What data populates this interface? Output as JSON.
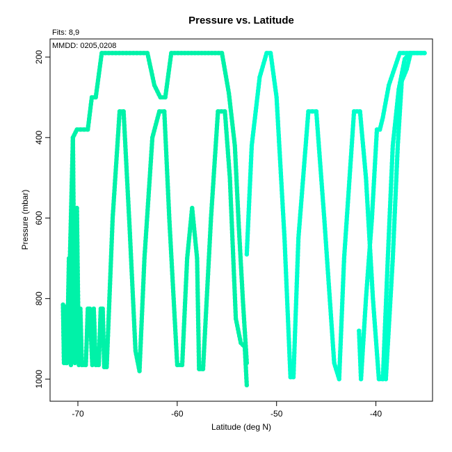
{
  "chart_data": {
    "type": "line",
    "title": "Pressure vs. Latitude",
    "subtitle_fits": "Fits: 8,9",
    "subtitle_mmdd": "MMDD: 0205,0208",
    "xlabel": "Latitude (deg N)",
    "ylabel": "Pressure (mbar)",
    "xlim": [
      -72.8,
      -34.3
    ],
    "ylim": [
      1055,
      155
    ],
    "y_inverted": true,
    "xticks": [
      -70,
      -60,
      -50,
      -40
    ],
    "xtick_labels": [
      "-70",
      "-60",
      "-50",
      "-40"
    ],
    "yticks": [
      200,
      400,
      600,
      800,
      1000
    ],
    "ytick_labels": [
      "200",
      "400",
      "600",
      "800",
      "1000"
    ],
    "grid": false,
    "legend": "none",
    "colors": {
      "series_0208": "#00f2a8",
      "series_0205": "#00ffcc",
      "axes": "#000000"
    },
    "series": [
      {
        "color_key": "series_0208",
        "points": [
          [
            -71.5,
            815
          ],
          [
            -71.4,
            960
          ],
          [
            -71.2,
            820
          ],
          [
            -71.1,
            960
          ],
          [
            -70.9,
            700
          ],
          [
            -70.7,
            965
          ],
          [
            -70.5,
            400
          ],
          [
            -70.3,
            960
          ],
          [
            -70.1,
            575
          ],
          [
            -69.9,
            965
          ],
          [
            -69.75,
            825
          ],
          [
            -69.6,
            965
          ],
          [
            -69.2,
            965
          ],
          [
            -69.0,
            825
          ],
          [
            -68.8,
            825
          ],
          [
            -68.55,
            965
          ],
          [
            -68.4,
            825
          ],
          [
            -68.2,
            965
          ],
          [
            -67.9,
            965
          ],
          [
            -67.7,
            825
          ],
          [
            -67.5,
            825
          ],
          [
            -67.35,
            970
          ],
          [
            -67.1,
            970
          ],
          [
            -66.5,
            600
          ],
          [
            -65.8,
            335
          ],
          [
            -65.4,
            335
          ],
          [
            -64.8,
            620
          ],
          [
            -64.2,
            930
          ],
          [
            -63.8,
            980
          ],
          [
            -63.3,
            700
          ],
          [
            -62.5,
            400
          ],
          [
            -61.8,
            335
          ],
          [
            -61.3,
            335
          ],
          [
            -60.8,
            600
          ],
          [
            -60.0,
            965
          ],
          [
            -59.5,
            965
          ],
          [
            -59.0,
            700
          ],
          [
            -58.5,
            575
          ],
          [
            -58.0,
            700
          ],
          [
            -57.8,
            975
          ],
          [
            -57.4,
            975
          ],
          [
            -56.6,
            600
          ],
          [
            -55.9,
            335
          ],
          [
            -55.2,
            335
          ],
          [
            -54.7,
            500
          ],
          [
            -54.1,
            850
          ],
          [
            -53.6,
            910
          ],
          [
            -53.2,
            920
          ],
          [
            -53.0,
            1015
          ]
        ]
      },
      {
        "color_key": "series_0208",
        "points": [
          [
            -71.2,
            960
          ],
          [
            -70.8,
            700
          ],
          [
            -70.5,
            400
          ],
          [
            -70.1,
            380
          ],
          [
            -69.0,
            380
          ],
          [
            -68.6,
            300
          ],
          [
            -68.2,
            300
          ],
          [
            -67.6,
            190
          ],
          [
            -63.0,
            190
          ],
          [
            -62.3,
            270
          ],
          [
            -61.7,
            300
          ],
          [
            -61.2,
            300
          ],
          [
            -60.6,
            190
          ],
          [
            -55.5,
            190
          ],
          [
            -54.8,
            290
          ],
          [
            -54.2,
            420
          ],
          [
            -53.8,
            620
          ],
          [
            -53.4,
            800
          ],
          [
            -53.0,
            960
          ]
        ]
      },
      {
        "color_key": "series_0205",
        "points": [
          [
            -53.0,
            690
          ],
          [
            -52.5,
            420
          ],
          [
            -51.7,
            250
          ],
          [
            -51.0,
            190
          ],
          [
            -50.6,
            190
          ],
          [
            -50.0,
            300
          ],
          [
            -49.2,
            650
          ],
          [
            -48.6,
            995
          ],
          [
            -48.3,
            995
          ],
          [
            -47.8,
            650
          ],
          [
            -46.8,
            335
          ],
          [
            -46.0,
            335
          ],
          [
            -45.2,
            600
          ],
          [
            -44.2,
            960
          ],
          [
            -43.7,
            1000
          ],
          [
            -43.2,
            700
          ],
          [
            -42.2,
            335
          ],
          [
            -41.6,
            335
          ],
          [
            -41.0,
            500
          ],
          [
            -40.3,
            800
          ],
          [
            -39.7,
            1000
          ],
          [
            -39.3,
            1000
          ],
          [
            -38.8,
            700
          ],
          [
            -38.3,
            420
          ],
          [
            -37.7,
            280
          ],
          [
            -37.1,
            205
          ],
          [
            -36.6,
            190
          ],
          [
            -35.1,
            190
          ]
        ]
      },
      {
        "color_key": "series_0205",
        "points": [
          [
            -41.7,
            880
          ],
          [
            -41.5,
            1000
          ],
          [
            -41.0,
            800
          ],
          [
            -40.4,
            600
          ],
          [
            -39.9,
            380
          ],
          [
            -39.6,
            380
          ],
          [
            -39.3,
            350
          ],
          [
            -38.7,
            270
          ],
          [
            -37.6,
            190
          ],
          [
            -35.1,
            190
          ]
        ]
      },
      {
        "color_key": "series_0205",
        "points": [
          [
            -39.0,
            1000
          ],
          [
            -38.3,
            700
          ],
          [
            -37.8,
            420
          ],
          [
            -37.4,
            260
          ],
          [
            -36.9,
            230
          ],
          [
            -36.5,
            190
          ]
        ]
      }
    ]
  }
}
